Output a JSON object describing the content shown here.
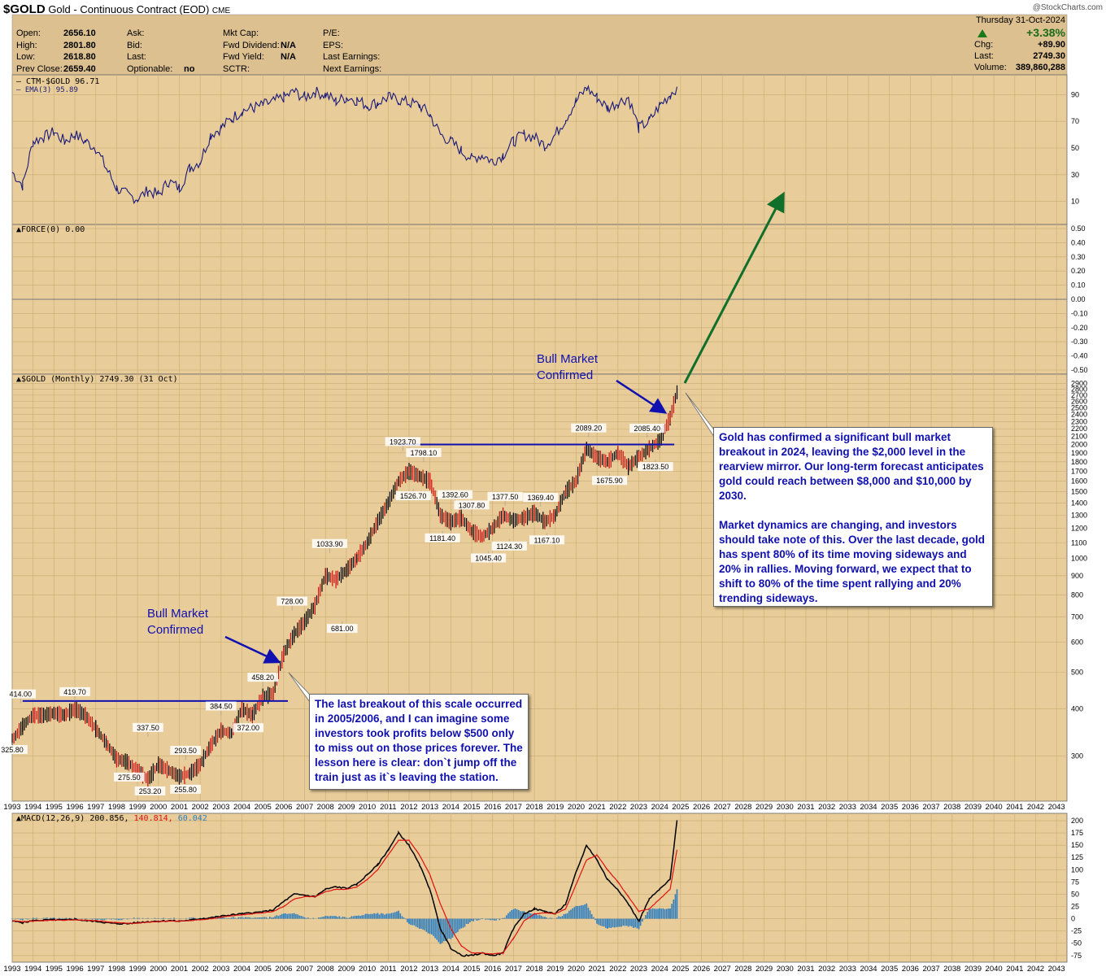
{
  "header": {
    "symbol": "$GOLD",
    "name": "Gold - Continuous Contract (EOD)",
    "exchange": "CME",
    "site": "@StockCharts.com"
  },
  "quote": {
    "col1": [
      {
        "label": "Open:",
        "value": "2656.10"
      },
      {
        "label": "High:",
        "value": "2801.80"
      },
      {
        "label": "Low:",
        "value": "2618.80"
      },
      {
        "label": "Prev Close:",
        "value": "2659.40"
      }
    ],
    "col2": [
      {
        "label": "Ask:",
        "value": ""
      },
      {
        "label": "Bid:",
        "value": ""
      },
      {
        "label": "Last:",
        "value": ""
      },
      {
        "label": "Optionable:",
        "value": "no"
      }
    ],
    "col3": [
      {
        "label": "Mkt Cap:",
        "value": ""
      },
      {
        "label": "Fwd Dividend:",
        "value": "N/A"
      },
      {
        "label": "Fwd Yield:",
        "value": "N/A"
      },
      {
        "label": "SCTR:",
        "value": ""
      }
    ],
    "col4": [
      {
        "label": "P/E:",
        "value": ""
      },
      {
        "label": "EPS:",
        "value": ""
      },
      {
        "label": "Last Earnings:",
        "value": ""
      },
      {
        "label": "Next Earnings:",
        "value": ""
      }
    ],
    "date": "Thursday  31-Oct-2024",
    "change_pct": "+3.38%",
    "chg_label": "Chg:",
    "chg": "+89.90",
    "last_label": "Last:",
    "last": "2749.30",
    "volume_label": "Volume:",
    "volume": "389,860,288"
  },
  "colors": {
    "panel_bg": "#e8cc99",
    "header_bg": "#dcc090",
    "grid": "#c9ab74",
    "price_line": "#1a1a7a",
    "blue_annot": "#1010b0",
    "arrow_green": "#106f2a",
    "macd_black": "#000000",
    "macd_signal": "#e01010",
    "histogram": "#2f7fc0",
    "up_candle": "#000000",
    "down_candle": "#cc1010"
  },
  "panels": {
    "ctm_label": "CTM-$GOLD 96.71",
    "ema_label": "EMA(3) 95.89",
    "force_label": "FORCE(0) 0.00",
    "price_label": "$GOLD (Monthly) 2749.30 (31 Oct)",
    "macd_label": "MACD(12,26,9) 200.856,",
    "macd_signal_val": "140.814,",
    "macd_hist_val": "60.042"
  },
  "annotations": {
    "bull1_line1": "Bull Market",
    "bull1_line2": "Confirmed",
    "bull2_line1": "Bull Market",
    "bull2_line2": "Confirmed",
    "box1": "Gold has confirmed a significant bull market breakout in 2024, leaving the $2,000 level in the rearview mirror. Our long-term forecast anticipates gold could reach between $8,000 and $10,000 by 2030.",
    "box1b": "Market dynamics are changing, and investors should take note of this. Over the last decade, gold has spent 80% of its time moving sideways and 20% in rallies. Moving forward, we expect that to shift to 80% of the time spent rallying and 20% trending sideways.",
    "box2": "The last breakout of this scale occurred in 2005/2006, and I can imagine some investors took profits below $500 only to miss out on those prices forever. The lesson here is clear: don`t jump off the train just as it`s leaving the station."
  },
  "chart_data": [
    {
      "type": "line",
      "title": "CTM-$GOLD 96.71",
      "series": [
        {
          "name": "EMA(3) 95.89"
        }
      ],
      "x": [
        1993.0,
        1993.5,
        1994.0,
        1994.5,
        1995.0,
        1995.5,
        1996.0,
        1996.5,
        1997.0,
        1997.5,
        1998.0,
        1998.5,
        1999.0,
        1999.5,
        2000.0,
        2000.5,
        2001.0,
        2001.5,
        2002.0,
        2002.5,
        2003.0,
        2003.5,
        2004.0,
        2004.5,
        2005.0,
        2005.5,
        2006.0,
        2006.5,
        2007.0,
        2007.5,
        2008.0,
        2008.5,
        2009.0,
        2009.5,
        2010.0,
        2010.5,
        2011.0,
        2011.5,
        2012.0,
        2012.5,
        2013.0,
        2013.5,
        2014.0,
        2014.5,
        2015.0,
        2015.5,
        2016.0,
        2016.5,
        2017.0,
        2017.5,
        2018.0,
        2018.5,
        2019.0,
        2019.5,
        2020.0,
        2020.5,
        2021.0,
        2021.5,
        2022.0,
        2022.5,
        2023.0,
        2023.5,
        2024.0,
        2024.5,
        2024.83
      ],
      "values": [
        32,
        22,
        55,
        58,
        62,
        55,
        60,
        55,
        50,
        35,
        20,
        15,
        12,
        18,
        15,
        25,
        20,
        35,
        40,
        60,
        65,
        72,
        78,
        80,
        82,
        85,
        88,
        92,
        88,
        92,
        90,
        85,
        88,
        86,
        82,
        84,
        88,
        86,
        84,
        82,
        75,
        60,
        55,
        48,
        42,
        45,
        40,
        45,
        55,
        60,
        58,
        52,
        60,
        72,
        85,
        95,
        88,
        80,
        84,
        88,
        65,
        70,
        82,
        90,
        96
      ],
      "ylim": [
        0,
        100
      ],
      "yticks": [
        10,
        30,
        50,
        70,
        90
      ]
    },
    {
      "type": "line",
      "title": "FORCE(0) 0.00",
      "yticks": [
        0.5,
        0.4,
        0.3,
        0.2,
        0.1,
        0.0,
        -0.1,
        -0.2,
        -0.3,
        -0.4,
        -0.5
      ],
      "values": [
        0.0
      ]
    },
    {
      "type": "line",
      "title": "$GOLD (Monthly) 2749.30 (31 Oct)",
      "log_scale": true,
      "x": [
        1993.0,
        1993.5,
        1994.0,
        1994.5,
        1995.0,
        1995.5,
        1996.0,
        1996.5,
        1997.0,
        1997.5,
        1998.0,
        1998.5,
        1999.0,
        1999.5,
        2000.0,
        2000.5,
        2001.0,
        2001.5,
        2002.0,
        2002.5,
        2003.0,
        2003.5,
        2004.0,
        2004.5,
        2005.0,
        2005.5,
        2006.0,
        2006.5,
        2007.0,
        2007.5,
        2008.0,
        2008.5,
        2009.0,
        2009.5,
        2010.0,
        2010.5,
        2011.0,
        2011.5,
        2012.0,
        2012.5,
        2013.0,
        2013.5,
        2014.0,
        2014.5,
        2015.0,
        2015.5,
        2016.0,
        2016.5,
        2017.0,
        2017.5,
        2018.0,
        2018.5,
        2019.0,
        2019.5,
        2020.0,
        2020.5,
        2021.0,
        2021.5,
        2022.0,
        2022.5,
        2023.0,
        2023.5,
        2024.0,
        2024.5,
        2024.83
      ],
      "values": [
        330,
        360,
        385,
        385,
        390,
        385,
        400,
        385,
        355,
        325,
        295,
        290,
        275,
        260,
        285,
        275,
        265,
        270,
        285,
        320,
        350,
        345,
        400,
        385,
        430,
        440,
        560,
        630,
        680,
        750,
        900,
        880,
        930,
        1000,
        1100,
        1250,
        1400,
        1600,
        1700,
        1650,
        1600,
        1300,
        1250,
        1280,
        1180,
        1140,
        1200,
        1300,
        1260,
        1280,
        1320,
        1250,
        1300,
        1500,
        1600,
        1950,
        1850,
        1800,
        1900,
        1750,
        1850,
        1950,
        2050,
        2350,
        2749.3
      ],
      "yticks": [
        300,
        400,
        500,
        600,
        700,
        800,
        900,
        1000,
        1100,
        1200,
        1300,
        1400,
        1500,
        1600,
        1700,
        1800,
        1900,
        2000,
        2100,
        2200,
        2300,
        2400,
        2500,
        2600,
        2700,
        2800,
        2900
      ],
      "labels": [
        {
          "x": 1993.0,
          "y": 325.8,
          "text": "325.80"
        },
        {
          "x": 1993.4,
          "y": 414.0,
          "text": "414.00"
        },
        {
          "x": 1996.0,
          "y": 419.7,
          "text": "419.70"
        },
        {
          "x": 1999.5,
          "y": 337.5,
          "text": "337.50"
        },
        {
          "x": 1998.6,
          "y": 275.5,
          "text": "275.50"
        },
        {
          "x": 1999.6,
          "y": 253.2,
          "text": "253.20"
        },
        {
          "x": 2001.3,
          "y": 293.5,
          "text": "293.50"
        },
        {
          "x": 2001.3,
          "y": 255.8,
          "text": "255.80"
        },
        {
          "x": 2003.0,
          "y": 384.5,
          "text": "384.50"
        },
        {
          "x": 2004.3,
          "y": 372.0,
          "text": "372.00"
        },
        {
          "x": 2005.0,
          "y": 458.2,
          "text": "458.20"
        },
        {
          "x": 2006.4,
          "y": 728.0,
          "text": "728.00"
        },
        {
          "x": 2008.2,
          "y": 1033.9,
          "text": "1033.90"
        },
        {
          "x": 2008.8,
          "y": 681.0,
          "text": "681.00"
        },
        {
          "x": 2011.7,
          "y": 1923.7,
          "text": "1923.70"
        },
        {
          "x": 2012.7,
          "y": 1798.1,
          "text": "1798.10"
        },
        {
          "x": 2012.2,
          "y": 1526.7,
          "text": "1526.70"
        },
        {
          "x": 2014.2,
          "y": 1392.6,
          "text": "1392.60"
        },
        {
          "x": 2015.0,
          "y": 1307.8,
          "text": "1307.80"
        },
        {
          "x": 2013.6,
          "y": 1181.4,
          "text": "1181.40"
        },
        {
          "x": 2015.8,
          "y": 1045.4,
          "text": "1045.40"
        },
        {
          "x": 2016.6,
          "y": 1377.5,
          "text": "1377.50"
        },
        {
          "x": 2016.8,
          "y": 1124.3,
          "text": "1124.30"
        },
        {
          "x": 2018.3,
          "y": 1369.4,
          "text": "1369.40"
        },
        {
          "x": 2018.6,
          "y": 1167.1,
          "text": "1167.10"
        },
        {
          "x": 2020.6,
          "y": 2089.2,
          "text": "2089.20"
        },
        {
          "x": 2021.6,
          "y": 1675.9,
          "text": "1675.90"
        },
        {
          "x": 2023.4,
          "y": 2085.4,
          "text": "2085.40"
        },
        {
          "x": 2023.8,
          "y": 1823.5,
          "text": "1823.50"
        }
      ],
      "resistance_lines": [
        {
          "x1": 1993.5,
          "x2": 2006.2,
          "y": 419.7
        },
        {
          "x1": 2011.5,
          "x2": 2024.7,
          "y": 2000
        }
      ]
    },
    {
      "type": "line",
      "title": "MACD(12,26,9) 200.856, 140.814, 60.042",
      "series": [
        {
          "name": "MACD",
          "values": [
            -5,
            -8,
            -4,
            -3,
            -2,
            -3,
            -1,
            -4,
            -5,
            -8,
            -10,
            -10,
            -8,
            -6,
            -5,
            -4,
            -5,
            -3,
            0,
            2,
            5,
            8,
            10,
            12,
            14,
            18,
            35,
            50,
            48,
            45,
            60,
            65,
            62,
            70,
            90,
            110,
            140,
            175,
            150,
            110,
            60,
            -20,
            -60,
            -75,
            -75,
            -70,
            -75,
            -70,
            -20,
            10,
            20,
            15,
            10,
            30,
            95,
            150,
            120,
            80,
            60,
            30,
            -5,
            40,
            60,
            80,
            200.856
          ]
        },
        {
          "name": "Signal",
          "values": [
            -4,
            -6,
            -5,
            -4,
            -3,
            -3,
            -2,
            -3,
            -4,
            -6,
            -8,
            -9,
            -9,
            -7,
            -6,
            -5,
            -5,
            -4,
            -2,
            0,
            3,
            6,
            8,
            10,
            12,
            15,
            25,
            40,
            45,
            45,
            55,
            60,
            60,
            65,
            80,
            100,
            130,
            160,
            160,
            130,
            90,
            30,
            -20,
            -55,
            -70,
            -70,
            -72,
            -70,
            -40,
            -5,
            10,
            12,
            10,
            20,
            70,
            120,
            130,
            100,
            75,
            45,
            15,
            20,
            40,
            60,
            140.814
          ]
        }
      ],
      "histogram_last": 60.042,
      "yticks": [
        200,
        175,
        150,
        125,
        100,
        75,
        50,
        25,
        0,
        -25,
        -50,
        -75
      ]
    }
  ],
  "x_axis": {
    "years": [
      "1993",
      "1994",
      "1995",
      "1996",
      "1997",
      "1998",
      "1999",
      "2000",
      "2001",
      "2002",
      "2003",
      "2004",
      "2005",
      "2006",
      "2007",
      "2008",
      "2009",
      "2010",
      "2011",
      "2012",
      "2013",
      "2014",
      "2015",
      "2016",
      "2017",
      "2018",
      "2019",
      "2020",
      "2021",
      "2022",
      "2023",
      "2024",
      "2025",
      "2026",
      "2027",
      "2028",
      "2029",
      "2030",
      "2031",
      "2032",
      "2033",
      "2034",
      "2035",
      "2036",
      "2037",
      "2038",
      "2039",
      "2040",
      "2041",
      "2042",
      "2043"
    ]
  }
}
